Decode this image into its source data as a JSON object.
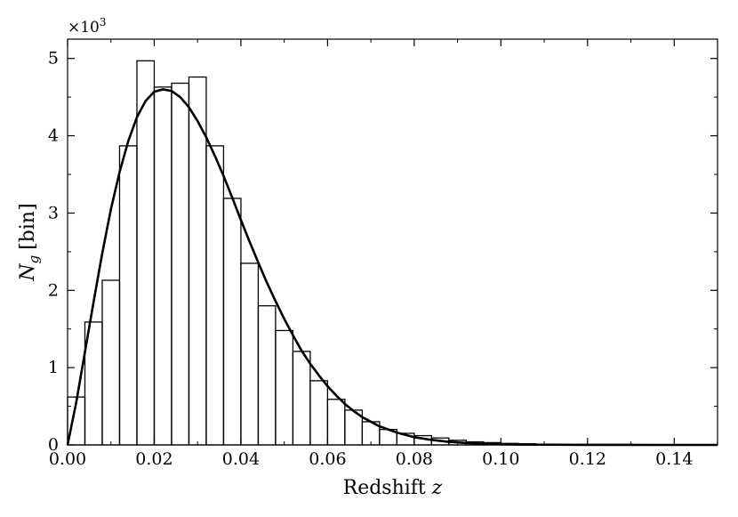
{
  "chart_data": {
    "type": "histogram+line",
    "xlabel": "Redshift",
    "xlabel_var": "z",
    "ylabel_main": "N",
    "ylabel_sub": "g",
    "ylabel_unit": "[bin]",
    "y_multiplier_base": "×10",
    "y_multiplier_exp": "3",
    "xlim": [
      0,
      0.15
    ],
    "ylim": [
      0,
      5.25
    ],
    "xticks": [
      "0.00",
      "0.02",
      "0.04",
      "0.06",
      "0.08",
      "0.10",
      "0.12",
      "0.14"
    ],
    "xtick_values": [
      0,
      0.02,
      0.04,
      0.06,
      0.08,
      0.1,
      0.12,
      0.14
    ],
    "yticks": [
      "0",
      "1",
      "2",
      "3",
      "4",
      "5"
    ],
    "ytick_values": [
      0,
      1,
      2,
      3,
      4,
      5
    ],
    "grid": false,
    "histogram": {
      "bin_edges": [
        0.0,
        0.004,
        0.008,
        0.012,
        0.016,
        0.02,
        0.024,
        0.028,
        0.032,
        0.036,
        0.04,
        0.044,
        0.048,
        0.052,
        0.056,
        0.06,
        0.064,
        0.068,
        0.072,
        0.076,
        0.08,
        0.084,
        0.088,
        0.092,
        0.096,
        0.1,
        0.104,
        0.108,
        0.112,
        0.116,
        0.12,
        0.124,
        0.128,
        0.132,
        0.136,
        0.14,
        0.144,
        0.148
      ],
      "counts": [
        0.62,
        1.59,
        2.13,
        3.87,
        4.97,
        4.63,
        4.68,
        4.76,
        3.87,
        3.19,
        2.35,
        1.8,
        1.48,
        1.21,
        0.83,
        0.59,
        0.45,
        0.3,
        0.2,
        0.15,
        0.12,
        0.09,
        0.06,
        0.04,
        0.03,
        0.02,
        0.015,
        0.01,
        0.008,
        0.006,
        0.005,
        0.004,
        0.003,
        0.002,
        0.002,
        0.001,
        0.001
      ]
    },
    "fit_curve": {
      "x": [
        0.0,
        0.002,
        0.004,
        0.006,
        0.008,
        0.01,
        0.012,
        0.014,
        0.016,
        0.018,
        0.02,
        0.022,
        0.024,
        0.026,
        0.028,
        0.03,
        0.032,
        0.034,
        0.036,
        0.038,
        0.04,
        0.042,
        0.044,
        0.046,
        0.048,
        0.05,
        0.052,
        0.054,
        0.056,
        0.058,
        0.06,
        0.062,
        0.064,
        0.066,
        0.068,
        0.07,
        0.072,
        0.074,
        0.076,
        0.078,
        0.08,
        0.084,
        0.088,
        0.092,
        0.096,
        0.1,
        0.105,
        0.11,
        0.115,
        0.12,
        0.125,
        0.13,
        0.135,
        0.14,
        0.145,
        0.15
      ],
      "y": [
        0.0,
        0.55,
        1.2,
        1.85,
        2.48,
        3.05,
        3.53,
        3.93,
        4.24,
        4.45,
        4.57,
        4.6,
        4.58,
        4.5,
        4.37,
        4.19,
        3.98,
        3.74,
        3.48,
        3.2,
        2.91,
        2.63,
        2.36,
        2.1,
        1.86,
        1.63,
        1.42,
        1.22,
        1.05,
        0.9,
        0.76,
        0.64,
        0.53,
        0.44,
        0.36,
        0.3,
        0.24,
        0.2,
        0.16,
        0.13,
        0.1,
        0.065,
        0.04,
        0.025,
        0.015,
        0.009,
        0.005,
        0.003,
        0.0015,
        0.0008,
        0.0004,
        0.0002,
        0.0001,
        0.0,
        0.0,
        0.0
      ]
    }
  }
}
